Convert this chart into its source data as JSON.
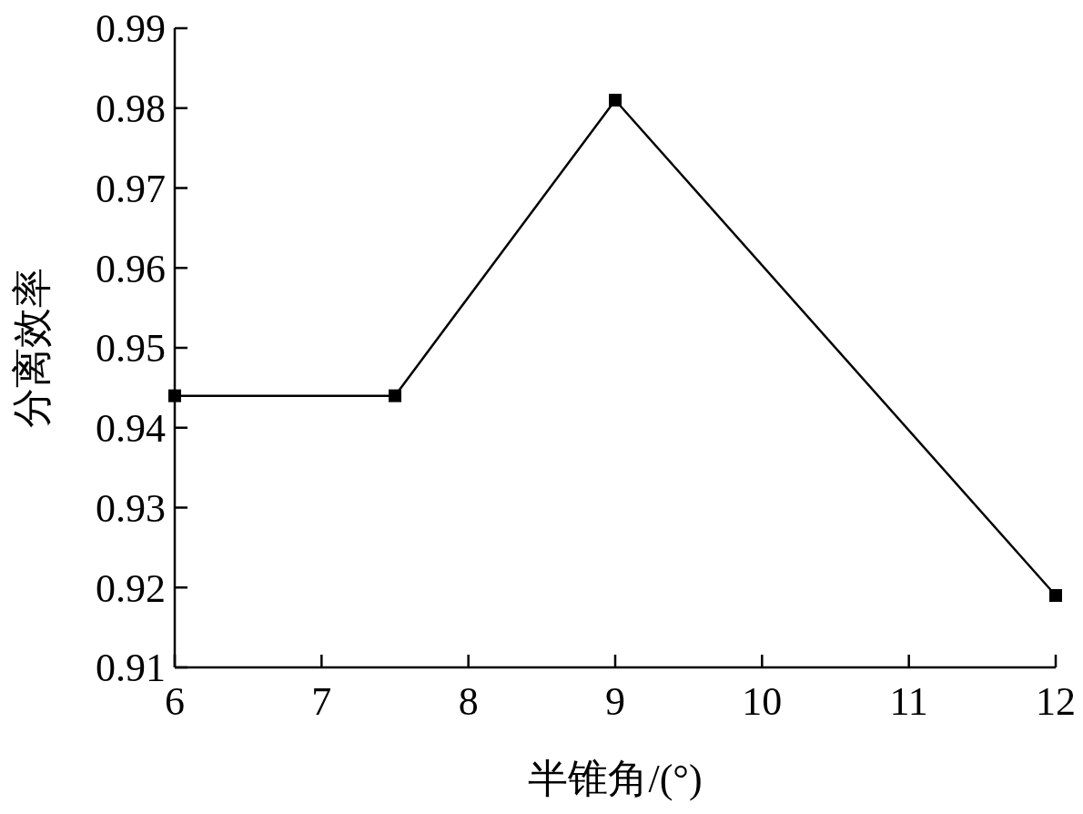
{
  "chart_data": {
    "type": "line",
    "xlabel": "半锥角/(°)",
    "ylabel": "分离效率",
    "x": [
      6,
      7.5,
      9,
      12
    ],
    "series": [
      {
        "color": "#000000",
        "values": [
          0.944,
          0.944,
          0.981,
          0.919
        ]
      }
    ],
    "xlim": [
      6,
      12
    ],
    "xticks": [
      6,
      7,
      8,
      9,
      10,
      11,
      12
    ],
    "ylim": [
      0.91,
      0.99
    ],
    "yticks": [
      0.91,
      0.92,
      0.93,
      0.94,
      0.95,
      0.96,
      0.97,
      0.98,
      0.99
    ],
    "marker": "square",
    "line_style": "solid"
  }
}
